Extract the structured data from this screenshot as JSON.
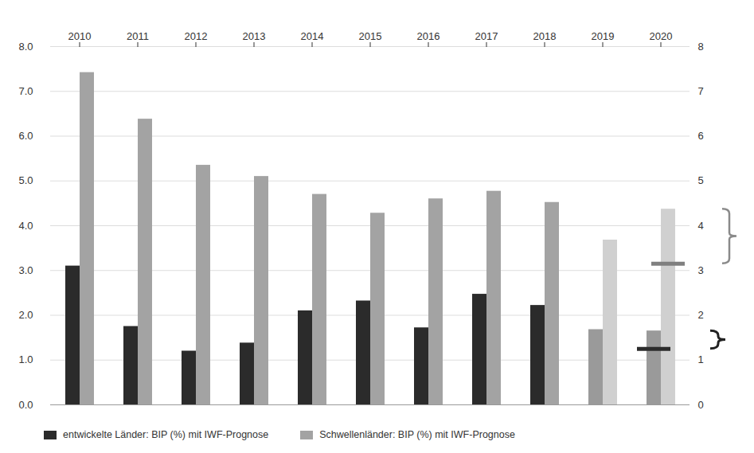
{
  "chart_data": {
    "type": "bar",
    "categories": [
      "2010",
      "2011",
      "2012",
      "2013",
      "2014",
      "2015",
      "2016",
      "2017",
      "2018",
      "2019",
      "2020"
    ],
    "series": [
      {
        "name": "entwickelte Länder: BIP (%) mit IWF-Prognose",
        "color": "#2b2b2b",
        "colors": [
          "#2b2b2b",
          "#2b2b2b",
          "#2b2b2b",
          "#2b2b2b",
          "#2b2b2b",
          "#2b2b2b",
          "#2b2b2b",
          "#2b2b2b",
          "#2b2b2b",
          "#9a9a9a",
          "#9a9a9a"
        ],
        "values": [
          3.1,
          1.75,
          1.2,
          1.38,
          2.1,
          2.32,
          1.72,
          2.47,
          2.22,
          1.68,
          1.65
        ]
      },
      {
        "name": "Schwellenländer: BIP (%) mit IWF-Prognose",
        "color": "#a3a3a3",
        "colors": [
          "#a3a3a3",
          "#a3a3a3",
          "#a3a3a3",
          "#a3a3a3",
          "#a3a3a3",
          "#a3a3a3",
          "#a3a3a3",
          "#a3a3a3",
          "#a3a3a3",
          "#d0d0d0",
          "#d0d0d0"
        ],
        "values": [
          7.42,
          6.38,
          5.35,
          5.1,
          4.7,
          4.28,
          4.6,
          4.77,
          4.52,
          3.68,
          4.37
        ]
      }
    ],
    "markers": [
      {
        "x": "2020",
        "series": "entwickelte Länder: BIP (%) mit IWF-Prognose",
        "value": 1.25,
        "color": "#2b2b2b"
      },
      {
        "x": "2020",
        "series": "Schwellenländer: BIP (%) mit IWF-Prognose",
        "value": 3.15,
        "color": "#808080"
      }
    ],
    "ylim": [
      0,
      8
    ],
    "yticks": [
      0,
      1,
      2,
      3,
      4,
      5,
      6,
      7,
      8
    ],
    "y2lim": [
      0,
      8
    ],
    "y2ticks": [
      0,
      1,
      2,
      3,
      4,
      5,
      6,
      7,
      8
    ],
    "grid": true,
    "legend": "bottom"
  }
}
